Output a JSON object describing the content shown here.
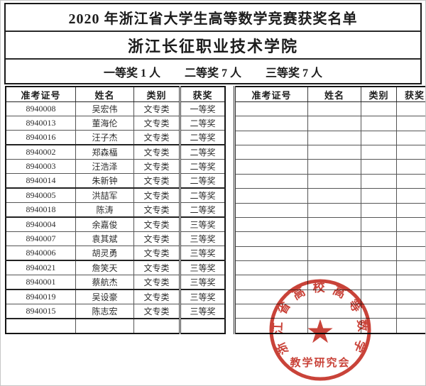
{
  "header": {
    "title": "2020 年浙江省大学生高等数学竞赛获奖名单",
    "college": "浙江长征职业技术学院",
    "summary": [
      {
        "text": "一等奖 1 人"
      },
      {
        "text": "二等奖 7 人"
      },
      {
        "text": "三等奖 7 人"
      }
    ]
  },
  "left_table": {
    "columns": [
      "准考证号",
      "姓名",
      "类别",
      "获奖"
    ],
    "rows": [
      [
        "8940008",
        "吴宏伟",
        "文专类",
        "一等奖"
      ],
      [
        "8940013",
        "董海伦",
        "文专类",
        "二等奖"
      ],
      [
        "8940016",
        "汪子杰",
        "文专类",
        "二等奖"
      ],
      [
        "8940002",
        "郑森楅",
        "文专类",
        "二等奖"
      ],
      [
        "8940003",
        "汪浩泽",
        "文专类",
        "二等奖"
      ],
      [
        "8940014",
        "朱新钟",
        "文专类",
        "二等奖"
      ],
      [
        "8940005",
        "洪喆军",
        "文专类",
        "二等奖"
      ],
      [
        "8940018",
        "陈涛",
        "文专类",
        "二等奖"
      ],
      [
        "8940004",
        "余嘉俊",
        "文专类",
        "三等奖"
      ],
      [
        "8940007",
        "袁其斌",
        "文专类",
        "三等奖"
      ],
      [
        "8940006",
        "胡灵勇",
        "文专类",
        "三等奖"
      ],
      [
        "8940021",
        "詹笑天",
        "文专类",
        "三等奖"
      ],
      [
        "8940001",
        "蔡航杰",
        "文专类",
        "三等奖"
      ],
      [
        "8940019",
        "吴设豪",
        "文专类",
        "三等奖"
      ],
      [
        "8940015",
        "陈志宏",
        "文专类",
        "三等奖"
      ],
      [
        "",
        "",
        "",
        ""
      ]
    ]
  },
  "right_table": {
    "columns": [
      "准考证号",
      "姓名",
      "类别",
      "获奖"
    ],
    "empty_row_count": 16
  },
  "seal": {
    "arc_text": "浙江省高校高等数学",
    "bottom_text": "教学研究会",
    "star_icon": "★",
    "color": "#c5342a"
  }
}
